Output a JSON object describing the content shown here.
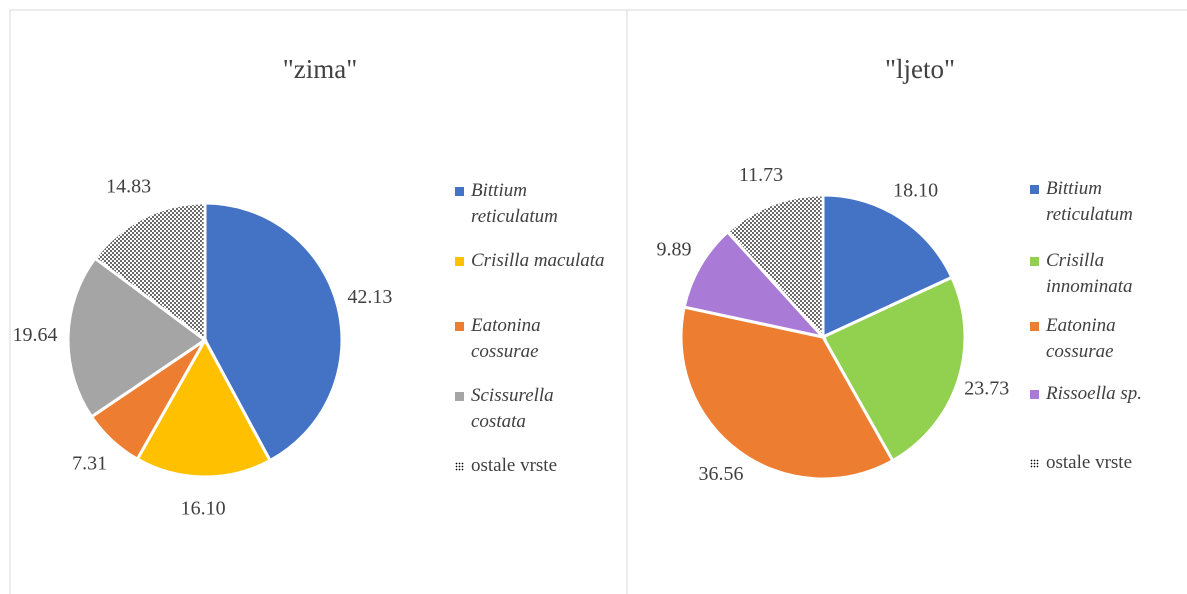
{
  "chart_data": [
    {
      "type": "pie",
      "title": "\"zima\"",
      "categories": [
        "Bittium reticulatum",
        "Crisilla maculata",
        "Eatonina cossurae",
        "Scissurella costata",
        "ostale vrste"
      ],
      "values": [
        42.13,
        16.1,
        7.31,
        19.64,
        14.83
      ],
      "value_labels": [
        "42.13",
        "16.10",
        "7.31",
        "19.64",
        "14.83"
      ],
      "colors": [
        "#4472c4",
        "#ffc000",
        "#ed7d31",
        "#a5a5a5",
        "pattern"
      ]
    },
    {
      "type": "pie",
      "title": "\"ljeto\"",
      "categories": [
        "Bittium reticulatum",
        "Crisilla innominata",
        "Eatonina cossurae",
        "Rissoella sp.",
        "ostale vrste"
      ],
      "values": [
        18.1,
        23.73,
        36.56,
        9.89,
        11.73
      ],
      "value_labels": [
        "18.10",
        "23.73",
        "36.56",
        "9.89",
        "11.73"
      ],
      "colors": [
        "#4472c4",
        "#92d050",
        "#ed7d31",
        "#a97bd6",
        "pattern"
      ]
    }
  ]
}
